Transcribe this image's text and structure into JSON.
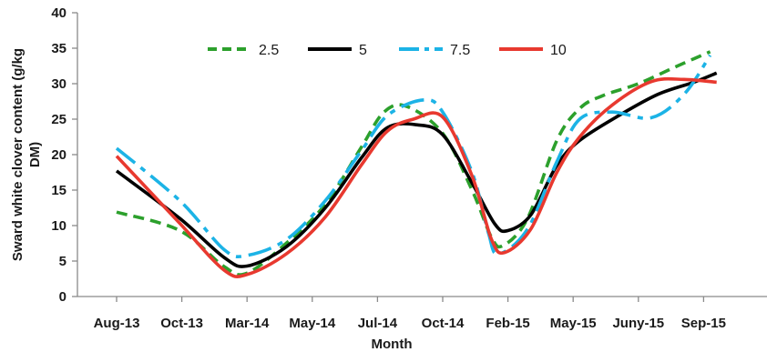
{
  "chart_data": {
    "type": "line",
    "xlabel": "Month",
    "ylabel_lines": [
      "Sward white clover content (g/kg",
      "DM)"
    ],
    "categories": [
      "Aug-13",
      "Oct-13",
      "Mar-14",
      "May-14",
      "Jul-14",
      "Oct-14",
      "Feb-15",
      "May-15",
      "Juny-15",
      "Sep-15"
    ],
    "ylim": [
      0,
      40
    ],
    "yticks": [
      0,
      5,
      10,
      15,
      20,
      25,
      30,
      35,
      40
    ],
    "grid": false,
    "legend_position": "top",
    "series": [
      {
        "name": "2.5",
        "color": "#2ca02c",
        "dash": "dashed",
        "points": [
          [
            0,
            11.9
          ],
          [
            0.97,
            9.3
          ],
          [
            1.65,
            4.2
          ],
          [
            2.0,
            3.3
          ],
          [
            2.6,
            7.5
          ],
          [
            3.2,
            13.0
          ],
          [
            3.75,
            21.0
          ],
          [
            4.1,
            26.0
          ],
          [
            4.45,
            26.8
          ],
          [
            5.0,
            23.0
          ],
          [
            5.45,
            15.0
          ],
          [
            5.75,
            8.3
          ],
          [
            5.93,
            7.2
          ],
          [
            6.3,
            11.0
          ],
          [
            6.75,
            22.0
          ],
          [
            7.1,
            26.5
          ],
          [
            7.45,
            28.3
          ],
          [
            8.0,
            30.0
          ],
          [
            8.6,
            32.5
          ],
          [
            9.1,
            34.5
          ]
        ]
      },
      {
        "name": "5",
        "color": "#000000",
        "dash": "solid",
        "points": [
          [
            0,
            17.7
          ],
          [
            0.97,
            11.0
          ],
          [
            1.65,
            5.5
          ],
          [
            2.0,
            4.3
          ],
          [
            2.6,
            7.0
          ],
          [
            3.2,
            12.5
          ],
          [
            3.75,
            19.5
          ],
          [
            4.15,
            23.8
          ],
          [
            4.6,
            24.2
          ],
          [
            5.0,
            22.8
          ],
          [
            5.45,
            16.0
          ],
          [
            5.8,
            10.2
          ],
          [
            6.0,
            9.3
          ],
          [
            6.35,
            11.5
          ],
          [
            6.75,
            18.5
          ],
          [
            7.1,
            22.0
          ],
          [
            7.7,
            25.5
          ],
          [
            8.3,
            28.5
          ],
          [
            8.85,
            30.2
          ],
          [
            9.2,
            31.5
          ]
        ]
      },
      {
        "name": "7.5",
        "color": "#1cb3e6",
        "dash": "longdash",
        "points": [
          [
            0,
            20.9
          ],
          [
            0.97,
            13.5
          ],
          [
            1.65,
            6.6
          ],
          [
            2.0,
            5.8
          ],
          [
            2.6,
            8.0
          ],
          [
            3.2,
            13.5
          ],
          [
            3.75,
            20.5
          ],
          [
            4.15,
            25.5
          ],
          [
            4.7,
            27.7
          ],
          [
            5.0,
            26.0
          ],
          [
            5.45,
            17.5
          ],
          [
            5.7,
            9.0
          ],
          [
            5.85,
            6.0
          ],
          [
            6.3,
            9.5
          ],
          [
            6.75,
            19.0
          ],
          [
            7.1,
            25.0
          ],
          [
            7.6,
            26.0
          ],
          [
            8.2,
            25.2
          ],
          [
            8.7,
            28.5
          ],
          [
            9.1,
            34.0
          ]
        ]
      },
      {
        "name": "10",
        "color": "#e8392f",
        "dash": "solid",
        "points": [
          [
            0,
            19.8
          ],
          [
            0.97,
            10.3
          ],
          [
            1.65,
            3.7
          ],
          [
            2.0,
            3.1
          ],
          [
            2.6,
            6.0
          ],
          [
            3.2,
            11.2
          ],
          [
            3.75,
            18.5
          ],
          [
            4.15,
            23.3
          ],
          [
            4.55,
            25.0
          ],
          [
            5.0,
            25.3
          ],
          [
            5.45,
            17.0
          ],
          [
            5.75,
            8.0
          ],
          [
            5.95,
            6.2
          ],
          [
            6.35,
            9.5
          ],
          [
            6.75,
            17.5
          ],
          [
            7.1,
            22.5
          ],
          [
            7.6,
            27.0
          ],
          [
            8.2,
            30.3
          ],
          [
            8.7,
            30.6
          ],
          [
            9.2,
            30.2
          ]
        ]
      }
    ]
  }
}
